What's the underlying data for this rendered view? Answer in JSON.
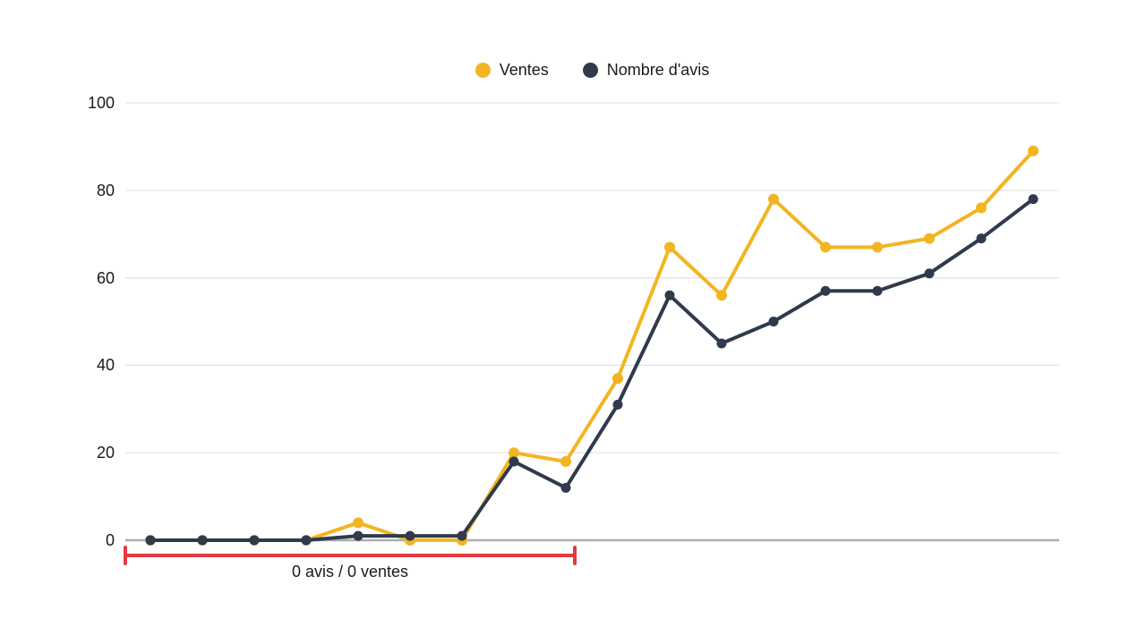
{
  "chart_data": {
    "type": "line",
    "title": "",
    "xlabel": "",
    "ylabel": "",
    "x_axis": {
      "labels_visible": false,
      "point_count": 18
    },
    "y_axis": {
      "ticks": [
        0,
        20,
        40,
        60,
        80,
        100
      ],
      "range": [
        0,
        100
      ]
    },
    "grid": "horizontal",
    "legend_position": "top-center",
    "series": [
      {
        "name": "Ventes",
        "color": "#F2B522",
        "values": [
          0,
          0,
          0,
          0,
          4,
          0,
          0,
          20,
          18,
          37,
          67,
          56,
          78,
          67,
          67,
          69,
          76,
          89
        ]
      },
      {
        "name": "Nombre d'avis",
        "color": "#2F3A4C",
        "values": [
          0,
          0,
          0,
          0,
          1,
          1,
          1,
          18,
          12,
          31,
          56,
          45,
          50,
          57,
          57,
          61,
          69,
          78
        ]
      }
    ],
    "annotation": {
      "label": "0 avis / 0 ventes",
      "color": "#E23B41",
      "from_point": 1,
      "to_point": 9
    }
  },
  "colors": {
    "background": "#FFFFFF",
    "gridline": "#E3E3E3",
    "zero_line": "#ADADAD",
    "text": "#1A1A1A"
  }
}
